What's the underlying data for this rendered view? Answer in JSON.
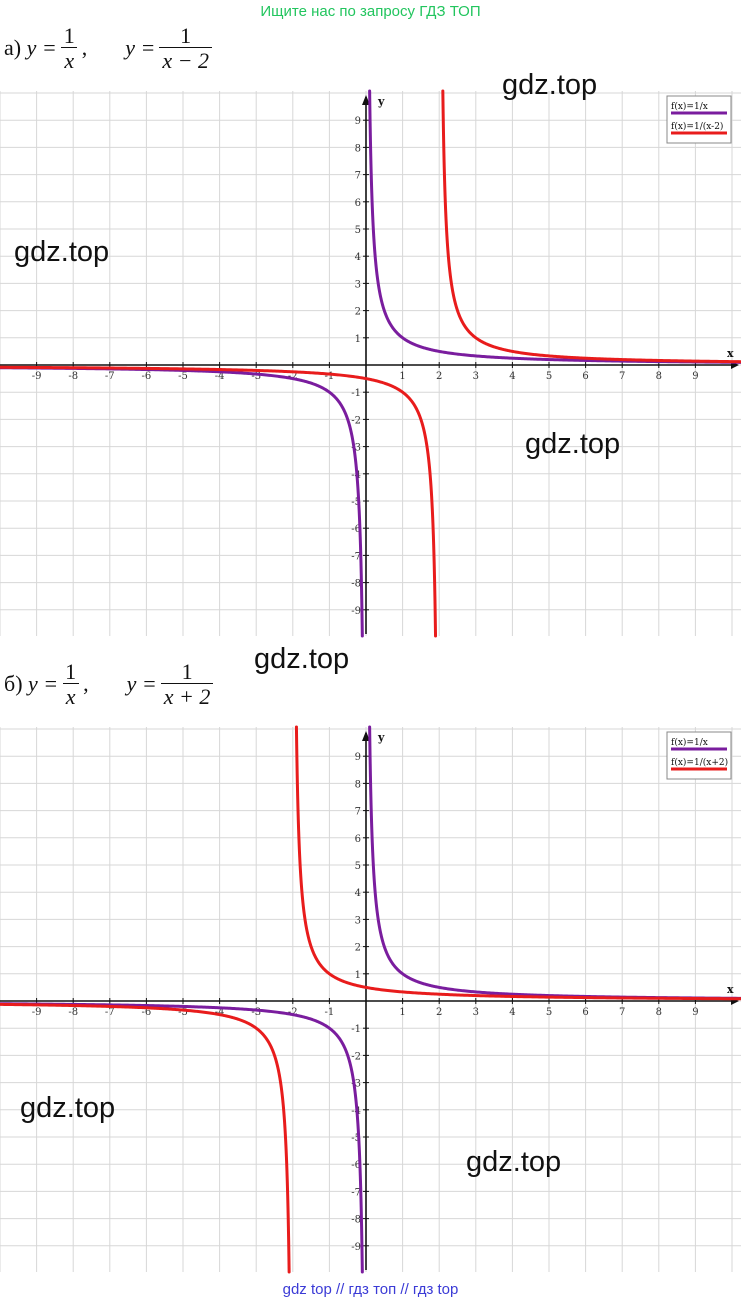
{
  "header": {
    "text": "Ищите нас по запросу ГДЗ ТОП",
    "color": "#22c55e"
  },
  "footer": {
    "text": "gdz top  //  гдз топ  //  гдз top",
    "color": "#3b3bd6"
  },
  "watermark": "gdz.top",
  "colors": {
    "purple": "#7a1d9e",
    "red": "#e81c1c",
    "grid": "#d7d7d7",
    "axis": "#111111"
  },
  "sections": [
    {
      "label": "а)",
      "formula1": {
        "lhs": "y =",
        "num": "1",
        "den": "x",
        "tail": ","
      },
      "formula2": {
        "lhs": "y =",
        "num": "1",
        "den": "x − 2"
      }
    },
    {
      "label": "б)",
      "formula1": {
        "lhs": "y =",
        "num": "1",
        "den": "x",
        "tail": ","
      },
      "formula2": {
        "lhs": "y =",
        "num": "1",
        "den": "x + 2"
      }
    }
  ],
  "chart_data": [
    {
      "type": "line",
      "xlabel": "x",
      "ylabel": "y",
      "xlim": [
        -10,
        10
      ],
      "ylim": [
        -10,
        10
      ],
      "x_ticks": [
        -9,
        -8,
        -7,
        -6,
        -5,
        -4,
        -3,
        -2,
        -1,
        1,
        2,
        3,
        4,
        5,
        6,
        7,
        8,
        9
      ],
      "y_ticks": [
        -9,
        -8,
        -7,
        -6,
        -5,
        -4,
        -3,
        -2,
        -1,
        1,
        2,
        3,
        4,
        5,
        6,
        7,
        8,
        9
      ],
      "grid": true,
      "legend_position": "top-right",
      "series": [
        {
          "name": "f(x)=1/x",
          "formula": "1/x",
          "shift": 0,
          "color": "#7a1d9e"
        },
        {
          "name": "f(x)=1/(x-2)",
          "formula": "1/(x-2)",
          "shift": 2,
          "color": "#e81c1c"
        }
      ]
    },
    {
      "type": "line",
      "xlabel": "x",
      "ylabel": "y",
      "xlim": [
        -10,
        10
      ],
      "ylim": [
        -10,
        10
      ],
      "x_ticks": [
        -9,
        -8,
        -7,
        -6,
        -5,
        -4,
        -3,
        -2,
        -1,
        1,
        2,
        3,
        4,
        5,
        6,
        7,
        8,
        9
      ],
      "y_ticks": [
        -9,
        -8,
        -7,
        -6,
        -5,
        -4,
        -3,
        -2,
        -1,
        1,
        2,
        3,
        4,
        5,
        6,
        7,
        8,
        9
      ],
      "grid": true,
      "legend_position": "top-right",
      "series": [
        {
          "name": "f(x)=1/x",
          "formula": "1/x",
          "shift": 0,
          "color": "#7a1d9e"
        },
        {
          "name": "f(x)=1/(x+2)",
          "formula": "1/(x+2)",
          "shift": -2,
          "color": "#e81c1c"
        }
      ]
    }
  ]
}
